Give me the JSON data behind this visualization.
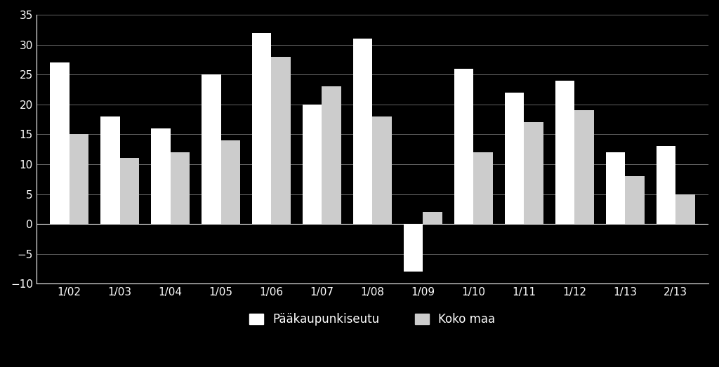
{
  "x_labels": [
    "1/02",
    "1/03",
    "1/04",
    "1/05",
    "1/06",
    "1/07",
    "1/08",
    "1/09",
    "1/10",
    "1/11",
    "1/12",
    "1/13",
    "2/13"
  ],
  "paakaupunkiseutu": [
    27,
    18,
    16,
    25,
    32,
    20,
    31,
    -8,
    26,
    22,
    24,
    12,
    13
  ],
  "koko_maa": [
    15,
    11,
    12,
    14,
    28,
    23,
    18,
    2,
    12,
    17,
    19,
    8,
    5
  ],
  "bar_color_paa": "#ffffff",
  "bar_color_koko": "#cccccc",
  "background_color": "#000000",
  "text_color": "#ffffff",
  "grid_color": "#666666",
  "ylim": [
    -10,
    35
  ],
  "yticks": [
    -10,
    -5,
    0,
    5,
    10,
    15,
    20,
    25,
    30,
    35
  ],
  "legend1": "Pääkaupunkiseutu",
  "legend2": "Koko maa",
  "bar_width": 0.38,
  "figsize": [
    10.24,
    5.23
  ],
  "dpi": 100
}
